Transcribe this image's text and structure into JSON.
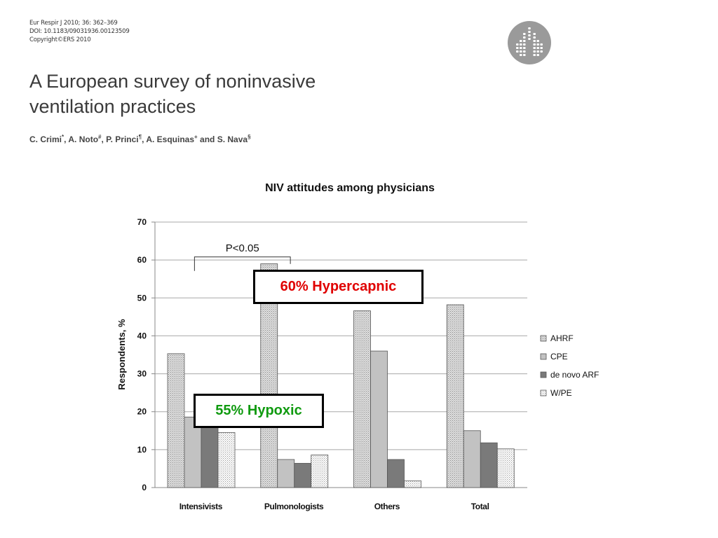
{
  "header": {
    "journal_line": "Eur Respir J 2010; 36: 362–369",
    "doi_line": "DOI: 10.1183/09031936.00123509",
    "copyright_line": "Copyright©ERS 2010",
    "logo_icon": "ers-lungs-logo-icon"
  },
  "paper": {
    "title_line1": "A European survey of noninvasive",
    "title_line2": "ventilation practices",
    "authors": [
      {
        "name": "C. Crimi",
        "mark": "*",
        "sep": ", "
      },
      {
        "name": "A. Noto",
        "mark": "#",
        "sep": ", "
      },
      {
        "name": "P. Princi",
        "mark": "¶",
        "sep": ", "
      },
      {
        "name": "A. Esquinas",
        "mark": "+",
        "sep": " and "
      },
      {
        "name": "S. Nava",
        "mark": "§",
        "sep": ""
      }
    ]
  },
  "chart_data": {
    "type": "bar",
    "title": "NIV attitudes among physicians",
    "xlabel": "",
    "ylabel": "Respondents, %",
    "ylim": [
      0,
      70
    ],
    "yticks": [
      0,
      10,
      20,
      30,
      40,
      50,
      60,
      70
    ],
    "grid": true,
    "legend_position": "right",
    "categories": [
      "Intensivists",
      "Pulmonologists",
      "Others",
      "Total"
    ],
    "series": [
      {
        "name": "AHRF",
        "values": [
          35.3,
          59,
          46.6,
          48.2
        ],
        "pattern": "hatch",
        "color": "#bdbdbd"
      },
      {
        "name": "CPE",
        "values": [
          18.6,
          7.4,
          36,
          15
        ],
        "pattern": "solid",
        "color": "#c2c2c2"
      },
      {
        "name": "de novo ARF",
        "values": [
          17.8,
          6.4,
          7.4,
          11.8
        ],
        "pattern": "solid",
        "color": "#7a7a7a"
      },
      {
        "name": "W/PE",
        "values": [
          14.5,
          8.6,
          1.8,
          10.2
        ],
        "pattern": "dots",
        "color": "#ffffff"
      }
    ],
    "annotation": {
      "text": "P<0.05",
      "from": "Intensivists",
      "to": "Pulmonologists",
      "y": 60.8
    },
    "callouts": [
      {
        "text": "60% Hypercapnic",
        "color": "#e00000"
      },
      {
        "text": "55% Hypoxic",
        "color": "#0f9a0f"
      }
    ]
  }
}
